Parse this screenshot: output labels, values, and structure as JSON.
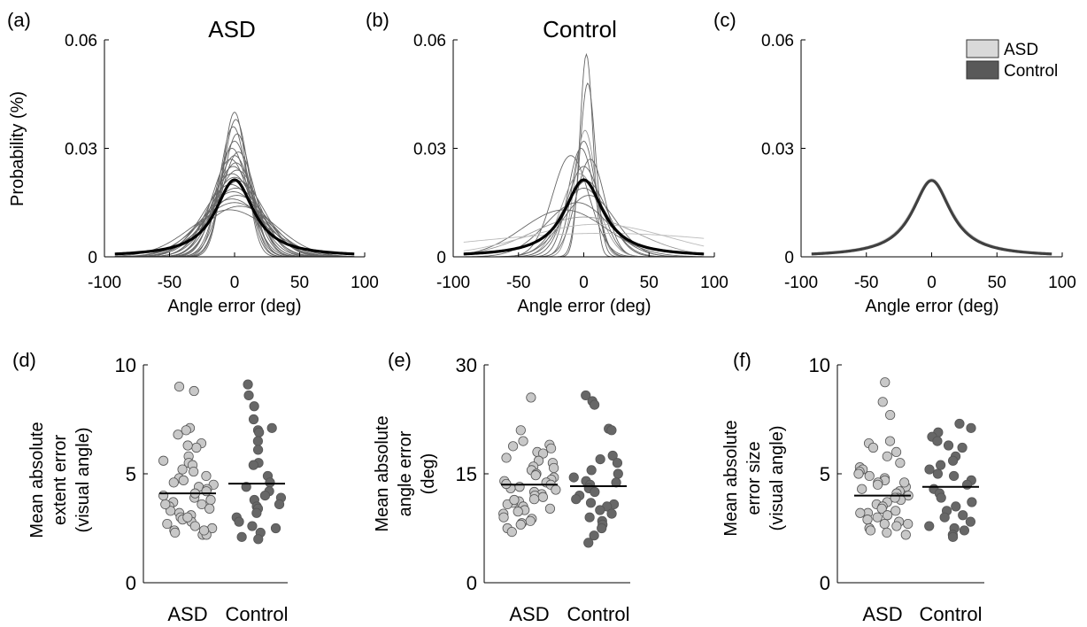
{
  "colors": {
    "asd": "#c8c8c8",
    "control": "#676767",
    "mean_curve": "#000000",
    "axis": "#000000"
  },
  "chart_data": [
    {
      "type": "line",
      "panel_label": "(a)",
      "title": "ASD",
      "xlabel": "Angle error (deg)",
      "ylabel": "Probability (%)",
      "xlim": [
        -100,
        100
      ],
      "ylim": [
        0,
        0.06
      ],
      "xticks": [
        -100,
        -50,
        0,
        50,
        100
      ],
      "xtick_labels": [
        "-100",
        "-50",
        "0",
        "50",
        "100"
      ],
      "yticks": [
        0,
        0.03,
        0.06
      ],
      "ytick_labels": [
        "0",
        "0.03",
        "0.06"
      ],
      "x_range": [
        -92,
        92
      ],
      "grid": false,
      "series": [
        {
          "role": "mean",
          "shape": "cauchy",
          "peak": 0.0213,
          "center": 0,
          "width": 18,
          "color": "#000000"
        },
        {
          "role": "individual",
          "shape": "gauss",
          "peak": 0.04,
          "center": 0,
          "width": 9,
          "color": "#666666"
        },
        {
          "role": "individual",
          "shape": "gauss",
          "peak": 0.038,
          "center": 1,
          "width": 10,
          "color": "#666666"
        },
        {
          "role": "individual",
          "shape": "gauss",
          "peak": 0.036,
          "center": -1,
          "width": 10.5,
          "color": "#666666"
        },
        {
          "role": "individual",
          "shape": "gauss",
          "peak": 0.034,
          "center": 2,
          "width": 11,
          "color": "#666666"
        },
        {
          "role": "individual",
          "shape": "gauss",
          "peak": 0.032,
          "center": 0,
          "width": 12,
          "color": "#666666"
        },
        {
          "role": "individual",
          "shape": "gauss",
          "peak": 0.03,
          "center": -2,
          "width": 12.5,
          "color": "#666666"
        },
        {
          "role": "individual",
          "shape": "gauss",
          "peak": 0.029,
          "center": 3,
          "width": 13,
          "color": "#666666"
        },
        {
          "role": "individual",
          "shape": "gauss",
          "peak": 0.028,
          "center": 0,
          "width": 14,
          "color": "#666666"
        },
        {
          "role": "individual",
          "shape": "gauss",
          "peak": 0.027,
          "center": -3,
          "width": 14.5,
          "color": "#666666"
        },
        {
          "role": "individual",
          "shape": "gauss",
          "peak": 0.026,
          "center": 1,
          "width": 15,
          "color": "#666666"
        },
        {
          "role": "individual",
          "shape": "gauss",
          "peak": 0.025,
          "center": -1,
          "width": 16,
          "color": "#666666"
        },
        {
          "role": "individual",
          "shape": "gauss",
          "peak": 0.024,
          "center": 2,
          "width": 17,
          "color": "#666666"
        },
        {
          "role": "individual",
          "shape": "gauss",
          "peak": 0.023,
          "center": -2,
          "width": 18,
          "color": "#666666"
        },
        {
          "role": "individual",
          "shape": "gauss",
          "peak": 0.022,
          "center": 0,
          "width": 19,
          "color": "#666666"
        },
        {
          "role": "individual",
          "shape": "gauss",
          "peak": 0.021,
          "center": 3,
          "width": 20,
          "color": "#666666"
        },
        {
          "role": "individual",
          "shape": "gauss",
          "peak": 0.02,
          "center": -3,
          "width": 21,
          "color": "#666666"
        },
        {
          "role": "individual",
          "shape": "gauss",
          "peak": 0.019,
          "center": 1,
          "width": 22,
          "color": "#666666"
        },
        {
          "role": "individual",
          "shape": "gauss",
          "peak": 0.018,
          "center": -1,
          "width": 23,
          "color": "#666666"
        },
        {
          "role": "individual",
          "shape": "gauss",
          "peak": 0.017,
          "center": 2,
          "width": 24,
          "color": "#666666"
        },
        {
          "role": "individual",
          "shape": "gauss",
          "peak": 0.016,
          "center": -2,
          "width": 25,
          "color": "#666666"
        },
        {
          "role": "individual",
          "shape": "gauss",
          "peak": 0.015,
          "center": 0,
          "width": 27,
          "color": "#666666"
        },
        {
          "role": "individual",
          "shape": "gauss",
          "peak": 0.014,
          "center": 4,
          "width": 28,
          "color": "#666666"
        },
        {
          "role": "individual",
          "shape": "gauss",
          "peak": 0.013,
          "center": -4,
          "width": 30,
          "color": "#666666"
        }
      ]
    },
    {
      "type": "line",
      "panel_label": "(b)",
      "title": "Control",
      "xlabel": "Angle error (deg)",
      "ylabel": "",
      "xlim": [
        -100,
        100
      ],
      "ylim": [
        0,
        0.06
      ],
      "xticks": [
        -100,
        -50,
        0,
        50,
        100
      ],
      "xtick_labels": [
        "-100",
        "-50",
        "0",
        "50",
        "100"
      ],
      "yticks": [
        0,
        0.03,
        0.06
      ],
      "ytick_labels": [
        "0",
        "0.03",
        "0.06"
      ],
      "x_range": [
        -92,
        92
      ],
      "grid": false,
      "series": [
        {
          "role": "mean",
          "shape": "cauchy",
          "peak": 0.0213,
          "center": 0,
          "width": 18,
          "color": "#000000"
        },
        {
          "role": "individual",
          "shape": "gauss",
          "peak": 0.056,
          "center": 2,
          "width": 5,
          "color": "#666666"
        },
        {
          "role": "individual",
          "shape": "gauss",
          "peak": 0.048,
          "center": 3,
          "width": 6,
          "color": "#666666"
        },
        {
          "role": "individual",
          "shape": "gauss",
          "peak": 0.035,
          "center": 1,
          "width": 8,
          "color": "#999999"
        },
        {
          "role": "individual",
          "shape": "gauss",
          "peak": 0.032,
          "center": 0,
          "width": 9,
          "color": "#666666"
        },
        {
          "role": "individual",
          "shape": "gauss",
          "peak": 0.03,
          "center": -2,
          "width": 10,
          "color": "#666666"
        },
        {
          "role": "individual",
          "shape": "gauss",
          "peak": 0.028,
          "center": -10,
          "width": 14,
          "color": "#666666"
        },
        {
          "role": "individual",
          "shape": "gauss",
          "peak": 0.027,
          "center": 5,
          "width": 11,
          "color": "#666666"
        },
        {
          "role": "individual",
          "shape": "gauss",
          "peak": 0.025,
          "center": 0,
          "width": 13,
          "color": "#666666"
        },
        {
          "role": "individual",
          "shape": "gauss",
          "peak": 0.023,
          "center": -3,
          "width": 14,
          "color": "#999999"
        },
        {
          "role": "individual",
          "shape": "gauss",
          "peak": 0.021,
          "center": 2,
          "width": 16,
          "color": "#666666"
        },
        {
          "role": "individual",
          "shape": "gauss",
          "peak": 0.019,
          "center": 0,
          "width": 18,
          "color": "#666666"
        },
        {
          "role": "individual",
          "shape": "gauss",
          "peak": 0.017,
          "center": 4,
          "width": 20,
          "color": "#666666"
        },
        {
          "role": "individual",
          "shape": "gauss",
          "peak": 0.015,
          "center": -5,
          "width": 24,
          "color": "#666666"
        },
        {
          "role": "individual",
          "shape": "gauss",
          "peak": 0.013,
          "center": -15,
          "width": 32,
          "color": "#666666"
        },
        {
          "role": "individual",
          "shape": "gauss",
          "peak": 0.011,
          "center": 0,
          "width": 40,
          "color": "#999999"
        },
        {
          "role": "individual",
          "shape": "gauss",
          "peak": 0.009,
          "center": 10,
          "width": 55,
          "color": "#bbbbbb"
        },
        {
          "role": "individual",
          "shape": "gauss",
          "peak": 0.0065,
          "center": 15,
          "width": 110,
          "color": "#bbbbbb"
        }
      ]
    },
    {
      "type": "line",
      "panel_label": "(c)",
      "title": "",
      "xlabel": "Angle error (deg)",
      "ylabel": "",
      "xlim": [
        -100,
        100
      ],
      "ylim": [
        0,
        0.06
      ],
      "xticks": [
        -100,
        -50,
        0,
        50,
        100
      ],
      "xtick_labels": [
        "-100",
        "-50",
        "0",
        "50",
        "100"
      ],
      "yticks": [
        0,
        0.03,
        0.06
      ],
      "ytick_labels": [
        "0",
        "0.03",
        "0.06"
      ],
      "x_range": [
        -92,
        92
      ],
      "grid": false,
      "legend": {
        "position": "top-right",
        "entries": [
          {
            "label": "ASD",
            "color": "#d9d9d9"
          },
          {
            "label": "Control",
            "color": "#595959"
          }
        ]
      },
      "series": [
        {
          "name": "ASD",
          "role": "group",
          "shape": "cauchy",
          "peak": 0.0213,
          "center": 0,
          "width": 18.5,
          "color": "#cccccc"
        },
        {
          "name": "Control",
          "role": "group",
          "shape": "cauchy",
          "peak": 0.0211,
          "center": 0,
          "width": 18,
          "color": "#404040"
        }
      ]
    },
    {
      "type": "scatter",
      "panel_label": "(d)",
      "ylabel_lines": [
        "Mean absolute",
        "extent error",
        "(visual angle)"
      ],
      "categories": [
        "ASD",
        "Control"
      ],
      "ylim": [
        0,
        10
      ],
      "yticks": [
        0,
        5,
        10
      ],
      "ytick_labels": [
        "0",
        "5",
        "10"
      ],
      "grid": false,
      "means": [
        4.1,
        4.55
      ],
      "groups": [
        {
          "name": "ASD",
          "color": "#c8c8c8",
          "values": [
            9.0,
            8.8,
            7.1,
            7.0,
            6.8,
            6.4,
            6.2,
            6.3,
            5.8,
            5.5,
            5.6,
            5.4,
            5.1,
            5.2,
            4.9,
            4.8,
            4.7,
            4.6,
            4.5,
            4.4,
            4.3,
            4.2,
            4.0,
            3.9,
            3.8,
            3.7,
            3.6,
            3.5,
            3.4,
            3.3,
            3.2,
            3.1,
            3.0,
            2.9,
            2.8,
            2.7,
            2.6,
            2.5,
            2.4,
            2.3,
            2.2,
            2.2,
            4.1,
            3.6,
            3.0,
            2.4
          ]
        },
        {
          "name": "Control",
          "color": "#676767",
          "values": [
            9.1,
            8.6,
            8.1,
            7.5,
            7.1,
            7.0,
            6.9,
            6.5,
            6.1,
            5.5,
            5.4,
            4.9,
            4.6,
            4.4,
            4.2,
            4.0,
            3.9,
            3.8,
            3.6,
            3.5,
            3.4,
            3.2,
            3.0,
            2.8,
            2.6,
            2.5,
            2.3,
            2.1,
            2.0
          ]
        }
      ]
    },
    {
      "type": "scatter",
      "panel_label": "(e)",
      "ylabel_lines": [
        "Mean absolute",
        "angle error",
        "(deg)"
      ],
      "categories": [
        "ASD",
        "Control"
      ],
      "ylim": [
        0,
        30
      ],
      "yticks": [
        0,
        15,
        30
      ],
      "ytick_labels": [
        "0",
        "15",
        "30"
      ],
      "grid": false,
      "means": [
        13.5,
        13.3
      ],
      "groups": [
        {
          "name": "ASD",
          "color": "#c8c8c8",
          "values": [
            25.5,
            21.0,
            19.5,
            19.0,
            18.8,
            18.5,
            18.0,
            17.8,
            17.2,
            16.8,
            16.5,
            16.0,
            15.5,
            15.0,
            14.8,
            14.5,
            14.2,
            14.0,
            13.8,
            13.5,
            13.2,
            13.0,
            12.8,
            12.5,
            12.2,
            12.0,
            11.8,
            11.5,
            11.2,
            11.0,
            10.8,
            10.5,
            10.2,
            10.0,
            9.8,
            9.5,
            9.0,
            8.8,
            8.5,
            8.2,
            8.0,
            7.5,
            7.0,
            15.8,
            13.6,
            11.4
          ]
        },
        {
          "name": "Control",
          "color": "#676767",
          "values": [
            25.8,
            25.0,
            24.5,
            21.2,
            21.0,
            17.5,
            17.0,
            16.5,
            15.5,
            15.0,
            14.5,
            14.0,
            13.8,
            13.5,
            13.0,
            12.5,
            12.0,
            11.5,
            11.0,
            10.8,
            10.5,
            10.0,
            9.5,
            9.0,
            8.5,
            8.0,
            7.5,
            6.5,
            5.5
          ]
        }
      ]
    },
    {
      "type": "scatter",
      "panel_label": "(f)",
      "ylabel_lines": [
        "Mean absolute",
        "error size",
        "(visual angle)"
      ],
      "categories": [
        "ASD",
        "Control"
      ],
      "ylim": [
        0,
        10
      ],
      "yticks": [
        0,
        5,
        10
      ],
      "ytick_labels": [
        "0",
        "5",
        "10"
      ],
      "grid": false,
      "means": [
        4.0,
        4.4
      ],
      "groups": [
        {
          "name": "ASD",
          "color": "#c8c8c8",
          "values": [
            9.2,
            8.3,
            7.7,
            6.5,
            6.4,
            6.2,
            6.0,
            5.8,
            5.5,
            5.3,
            5.2,
            5.1,
            5.0,
            4.9,
            4.8,
            4.7,
            4.6,
            4.5,
            4.4,
            4.3,
            4.2,
            4.1,
            4.0,
            3.9,
            3.8,
            3.7,
            3.6,
            3.5,
            3.4,
            3.3,
            3.2,
            3.1,
            3.0,
            2.9,
            2.8,
            2.7,
            2.6,
            2.5,
            2.4,
            2.3,
            2.2,
            4.6,
            3.9,
            3.2,
            2.7
          ]
        },
        {
          "name": "Control",
          "color": "#676767",
          "values": [
            7.3,
            7.1,
            6.9,
            6.7,
            6.5,
            6.3,
            6.2,
            5.8,
            5.6,
            5.4,
            5.2,
            5.0,
            4.9,
            4.7,
            4.5,
            4.3,
            4.1,
            3.9,
            3.7,
            3.5,
            3.3,
            3.1,
            3.0,
            2.8,
            2.6,
            2.5,
            2.4,
            2.2,
            2.1
          ]
        }
      ]
    }
  ]
}
